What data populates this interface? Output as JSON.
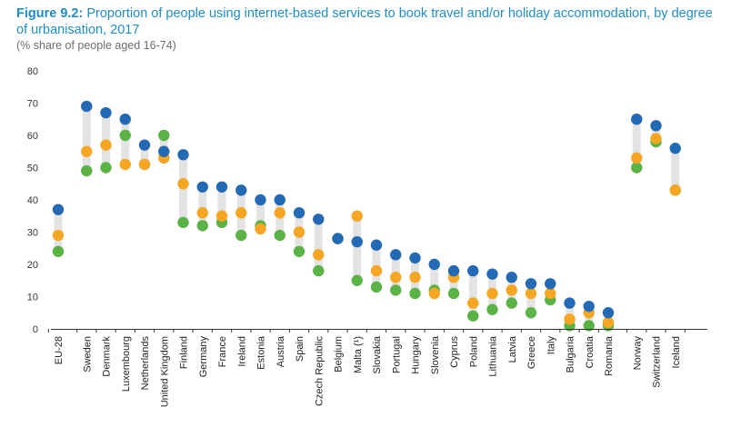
{
  "header": {
    "figure_label": "Figure 9.2:",
    "title": "Proportion of people using internet-based services to book travel and/or holiday accommodation, by degree of urbanisation, 2017",
    "subtitle": "(% share of people aged 16-74)"
  },
  "chart_data": {
    "type": "scatter",
    "ylim": [
      0,
      80
    ],
    "yticks": [
      0,
      10,
      20,
      30,
      40,
      50,
      60,
      70,
      80
    ],
    "grid": false,
    "categories": [
      "EU-28",
      "Sweden",
      "Denmark",
      "Luxembourg",
      "Netherlands",
      "United Kingdom",
      "Finland",
      "Germany",
      "France",
      "Ireland",
      "Estonia",
      "Austria",
      "Spain",
      "Czech Republic",
      "Belgium",
      "Malta (¹)",
      "Slovakia",
      "Portugal",
      "Hungary",
      "Slovenia",
      "Cyprus",
      "Poland",
      "Lithuania",
      "Latvia",
      "Greece",
      "Italy",
      "Bulgaria",
      "Croatia",
      "Romania",
      "Norway",
      "Switzerland",
      "Iceland"
    ],
    "gap_after": [
      0,
      28
    ],
    "colors": {
      "blue": "#2469b3",
      "orange": "#f5a623",
      "green": "#5bb246",
      "range_bar": "#e3e3e3"
    },
    "series": [
      {
        "color_key": "blue",
        "values": [
          37,
          69,
          67,
          65,
          57,
          55,
          54,
          44,
          44,
          43,
          40,
          40,
          36,
          34,
          28,
          27,
          26,
          23,
          22,
          20,
          18,
          18,
          17,
          16,
          14,
          14,
          8,
          7,
          5,
          65,
          63,
          56
        ]
      },
      {
        "color_key": "orange",
        "values": [
          29,
          55,
          57,
          51,
          51,
          53,
          45,
          36,
          35,
          36,
          31,
          36,
          30,
          23,
          28,
          35,
          18,
          16,
          16,
          11,
          16,
          8,
          11,
          12,
          11,
          11,
          3,
          5,
          2,
          53,
          59,
          43
        ]
      },
      {
        "color_key": "green",
        "values": [
          24,
          49,
          50,
          60,
          51,
          60,
          33,
          32,
          33,
          29,
          32,
          29,
          24,
          18,
          28,
          15,
          13,
          12,
          11,
          12,
          11,
          4,
          6,
          8,
          5,
          9,
          1,
          1,
          1,
          50,
          58,
          43
        ]
      }
    ]
  }
}
